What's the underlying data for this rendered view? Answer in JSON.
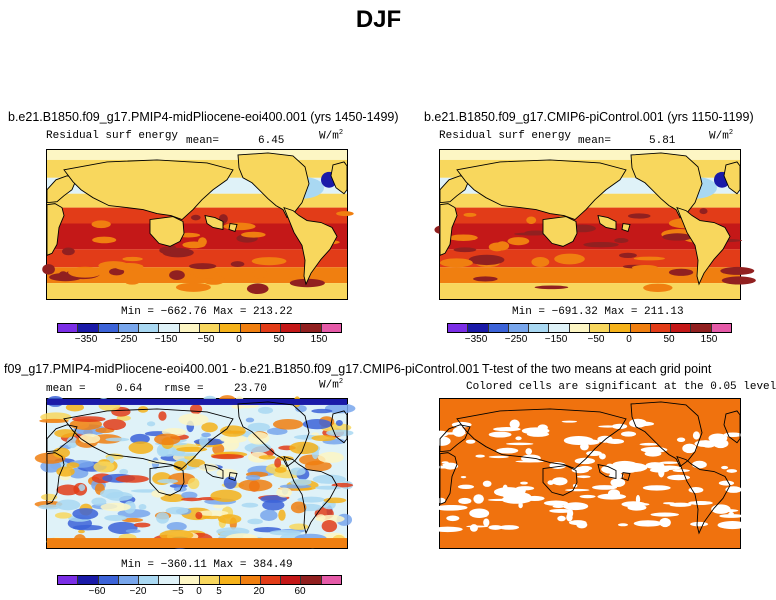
{
  "page_title": "DJF",
  "panels": [
    {
      "id": "p1",
      "title": "b.e21.B1850.f09_g17.PMIP4-midPliocene-eoi400.001 (yrs 1450-1499)",
      "variable": "Residual surf energy",
      "mean_label": "mean=",
      "mean_value": "6.45",
      "units": "W/m",
      "units_exp": "2",
      "stats": "Min = −662.76 Max = 213.22",
      "colorbar_ticks": [
        "−350",
        "−250",
        "−150",
        "−50",
        "0",
        "50",
        "150"
      ]
    },
    {
      "id": "p2",
      "title": "b.e21.B1850.f09_g17.CMIP6-piControl.001 (yrs 1150-1199)",
      "variable": "Residual surf energy",
      "mean_label": "mean=",
      "mean_value": "5.81",
      "units": "W/m",
      "units_exp": "2",
      "stats": "Min = −691.32 Max = 211.13",
      "colorbar_ticks": [
        "−350",
        "−250",
        "−150",
        "−50",
        "0",
        "50",
        "150"
      ]
    },
    {
      "id": "p3",
      "title": "f09_g17.PMIP4-midPliocene-eoi400.001 - b.e21.B1850.f09_g17.CMIP6-piControl.001",
      "mean_label": "mean =",
      "mean_value": "0.64",
      "rmse_label": "rmse =",
      "rmse_value": "23.70",
      "units": "W/m",
      "units_exp": "2",
      "stats": "Min = −360.11 Max = 384.49",
      "colorbar_ticks": [
        "−60",
        "−20",
        "−5",
        "0",
        "5",
        "20",
        "60"
      ]
    },
    {
      "id": "p4",
      "title": "T-test of the two means at each grid point",
      "subtitle": "Colored cells are significant at the 0.05 level"
    }
  ],
  "colors": {
    "colorbar": [
      "#7b2ee6",
      "#1a1aa8",
      "#3c63d8",
      "#78a6ec",
      "#a9d8f2",
      "#dff2f8",
      "#fdf6c4",
      "#f8d75d",
      "#f5b21a",
      "#f07f10",
      "#e23c18",
      "#c41818",
      "#912020",
      "#e55aa8"
    ],
    "ttest_fill": "#f0720e",
    "land_outline": "#000000"
  }
}
